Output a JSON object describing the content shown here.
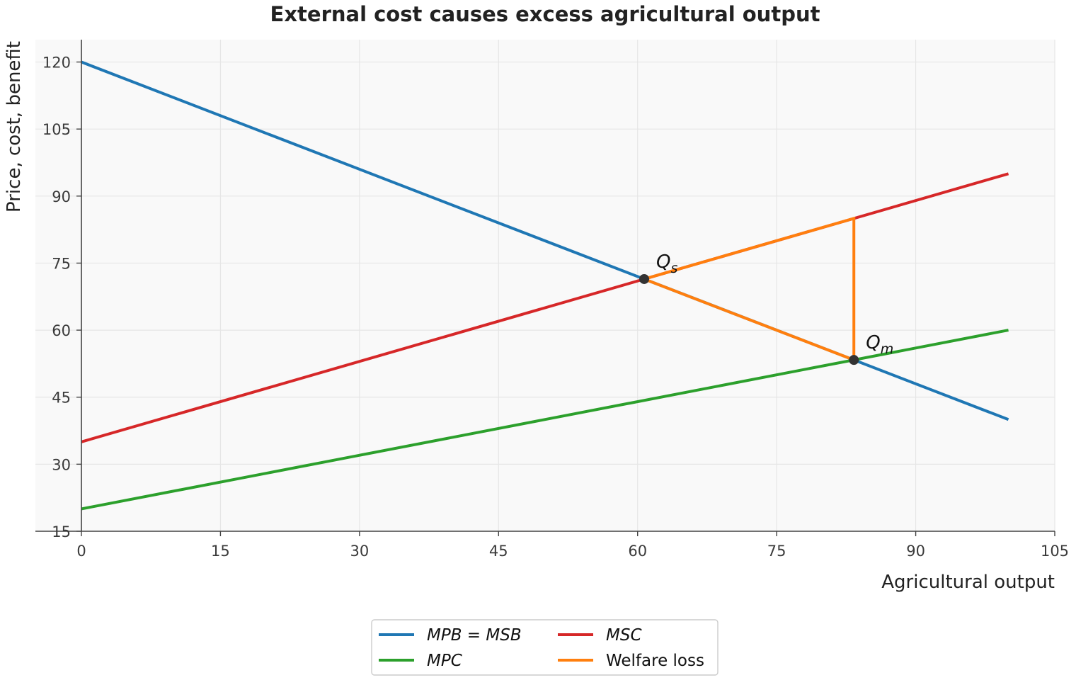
{
  "chart_data": {
    "type": "line",
    "title": "External cost causes excess agricultural output",
    "xlabel": "Agricultural output",
    "ylabel": "Price, cost, benefit",
    "xlim": [
      0,
      105
    ],
    "ylim": [
      15,
      125
    ],
    "xticks": [
      0,
      15,
      30,
      45,
      60,
      75,
      90,
      105
    ],
    "yticks": [
      15,
      30,
      45,
      60,
      75,
      90,
      105,
      120
    ],
    "grid": true,
    "legend_position": "bottom-center",
    "series": [
      {
        "name": "MPB = MSB",
        "x": [
          0,
          100
        ],
        "y": [
          120,
          40
        ],
        "color": "#1f77b4"
      },
      {
        "name": "MSC",
        "x": [
          0,
          100
        ],
        "y": [
          35,
          95
        ],
        "color": "#d62728"
      },
      {
        "name": "MPC",
        "x": [
          0,
          100
        ],
        "y": [
          20,
          60
        ],
        "color": "#2ca02c"
      },
      {
        "name": "Welfare loss",
        "x": [
          60.71,
          83.33,
          83.33,
          60.71
        ],
        "y": [
          71.43,
          85.0,
          53.33,
          71.43
        ],
        "color": "#ff7f0e"
      }
    ],
    "points": [
      {
        "label": "Q",
        "sub": "s",
        "x": 60.71,
        "y": 71.43
      },
      {
        "label": "Q",
        "sub": "m",
        "x": 83.33,
        "y": 53.33
      }
    ]
  }
}
